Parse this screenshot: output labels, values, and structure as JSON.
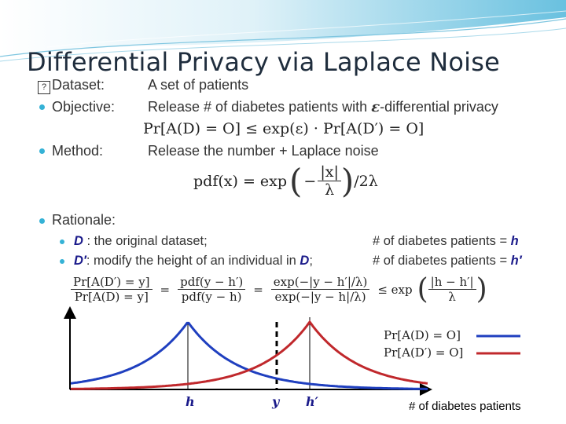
{
  "slide": {
    "title": "Differential Privacy via Laplace Noise",
    "accent_color": "#35b2d6",
    "bullets": {
      "dataset_label": "Dataset:",
      "dataset_value": "A set of patients",
      "objective_label": "Objective:",
      "objective_value_pre": "Release # of diabetes patients with ",
      "objective_epsilon": "ε",
      "objective_value_post": "-differential privacy",
      "method_label": "Method:",
      "method_value": "Release the number + Laplace noise",
      "rationale_label": "Rationale:",
      "sub1_symbol": "D",
      "sub1_text": " : the original dataset;",
      "sub1_right": "# of diabetes patients = ",
      "sub1_right_var": "h",
      "sub2_symbol": "D′",
      "sub2_text_pre": ": modify the height of an individual in ",
      "sub2_text_var": "D",
      "sub2_text_post": ";",
      "sub2_right": "# of diabetes patients = ",
      "sub2_right_var": "h′"
    },
    "formulas": {
      "dp_lhs": "Pr[A(D) = O] ≤ exp(ε) · Pr[A(D′) = O]",
      "pdf_lhs": "pdf(x) = exp",
      "pdf_num": "|x|",
      "pdf_den": "λ",
      "pdf_tail": "/2λ",
      "ratio_num_1": "Pr[A(D′) = y]",
      "ratio_den_1": "Pr[A(D) = y]",
      "ratio_num_2": "pdf(y − h′)",
      "ratio_den_2": "pdf(y − h)",
      "ratio_num_3": "exp(−|y − h′|/λ)",
      "ratio_den_3": "exp(−|y − h|/λ)",
      "eq": "=",
      "le_exp": "≤ exp",
      "bound_num": "|h − h′|",
      "bound_den": "λ"
    },
    "chart_data": {
      "type": "line",
      "series": [
        {
          "name": "Pr[A(D) = O]",
          "color": "#1f3fbf",
          "center": "h"
        },
        {
          "name": "Pr[A(D′) = O]",
          "color": "#c0282c",
          "center": "h′"
        }
      ],
      "x_ticks": [
        "h",
        "y",
        "h′"
      ],
      "xlabel": "# of diabetes patients",
      "legend_position": "right"
    }
  }
}
